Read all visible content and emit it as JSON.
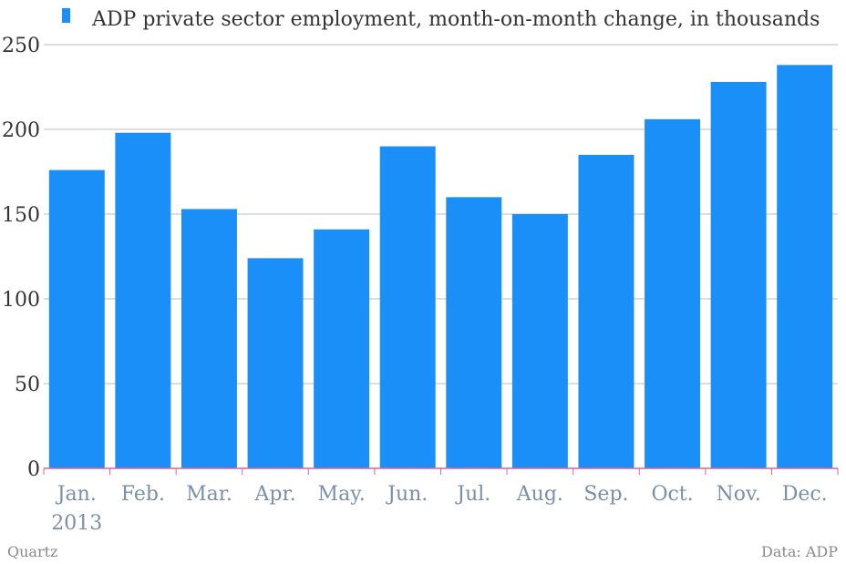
{
  "chart_data": {
    "type": "bar",
    "categories": [
      "Jan.",
      "Feb.",
      "Mar.",
      "Apr.",
      "May.",
      "Jun.",
      "Jul.",
      "Aug.",
      "Sep.",
      "Oct.",
      "Nov.",
      "Dec."
    ],
    "first_category_sublabel": "2013",
    "series": [
      {
        "name": "ADP private sector employment, month-on-month change, in thousands",
        "values": [
          176,
          198,
          153,
          124,
          141,
          190,
          160,
          150,
          185,
          206,
          228,
          238
        ]
      }
    ],
    "title": "",
    "xlabel": "",
    "ylabel": "",
    "ylim": [
      0,
      250
    ],
    "yticks": [
      0,
      50,
      100,
      150,
      200,
      250
    ],
    "grid": true,
    "legend": "top-left",
    "colors": {
      "bar": "#1a8ff7",
      "grid": "#bbbbbb",
      "axis": "#e0609a",
      "ytick": "#333333",
      "xtick": "#7a8fa8",
      "footer": "#8a8a8a"
    }
  },
  "footer": {
    "source_left": "Quartz",
    "source_right": "Data: ADP"
  }
}
